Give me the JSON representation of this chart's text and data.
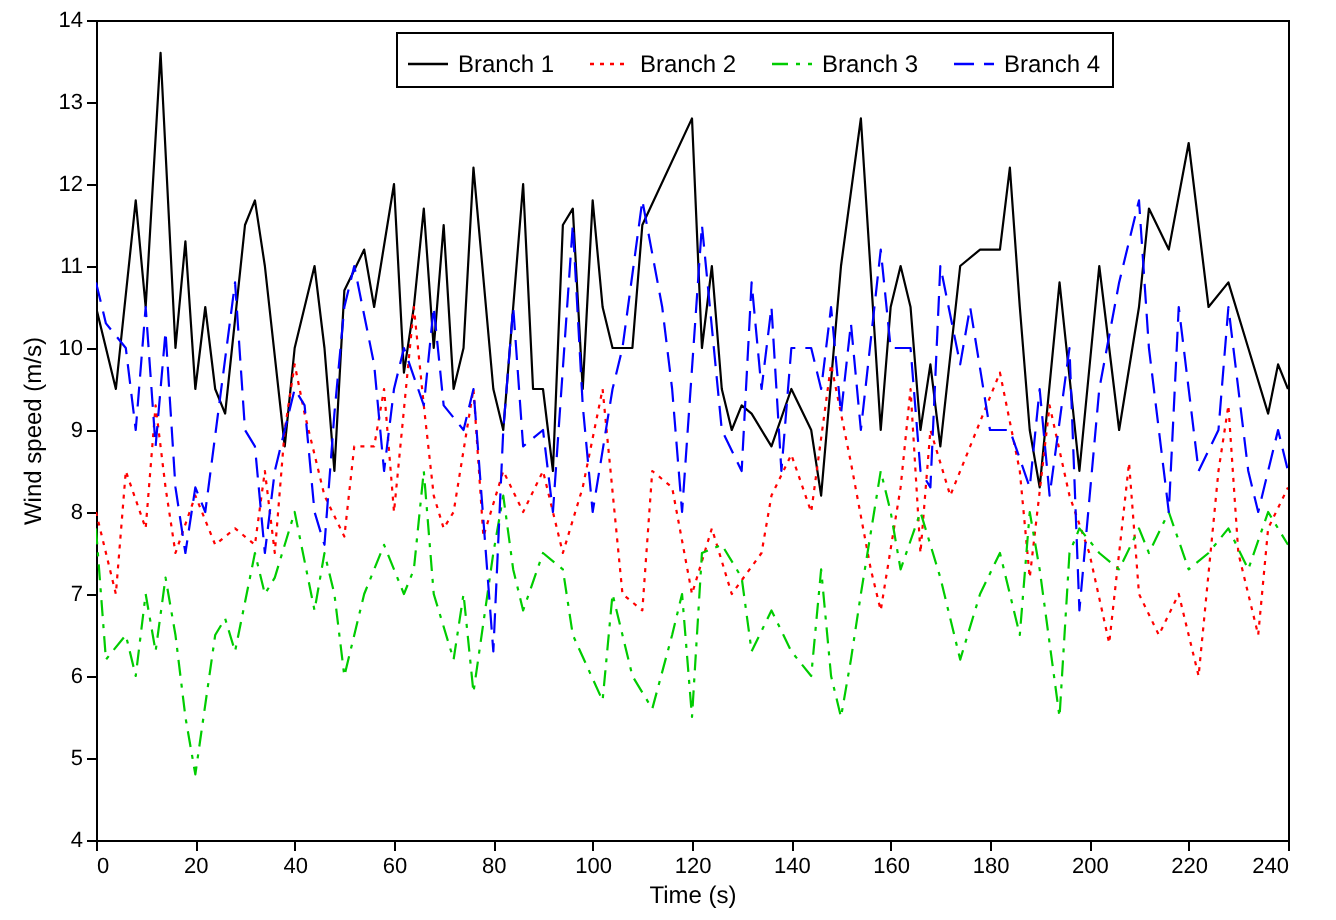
{
  "chart_data": {
    "type": "line",
    "xlabel": "Time (s)",
    "ylabel": "Wind speed (m/s)",
    "xlim": [
      0,
      240
    ],
    "ylim": [
      4,
      14
    ],
    "xticks": [
      0,
      20,
      40,
      60,
      80,
      100,
      120,
      140,
      160,
      180,
      200,
      220,
      240
    ],
    "yticks": [
      4,
      5,
      6,
      7,
      8,
      9,
      10,
      11,
      12,
      13,
      14
    ],
    "legend": "top",
    "grid": false,
    "series": [
      {
        "name": "Branch 1",
        "color": "#000000",
        "line_style": "solid",
        "x": [
          0,
          4,
          8,
          10,
          13,
          16,
          18,
          20,
          22,
          24,
          26,
          30,
          32,
          34,
          38,
          40,
          44,
          46,
          48,
          50,
          54,
          56,
          60,
          62,
          64,
          66,
          68,
          70,
          72,
          74,
          76,
          80,
          82,
          86,
          88,
          90,
          92,
          94,
          96,
          98,
          100,
          102,
          104,
          108,
          110,
          120,
          122,
          124,
          126,
          128,
          130,
          132,
          136,
          140,
          144,
          146,
          150,
          154,
          158,
          160,
          162,
          164,
          166,
          168,
          170,
          174,
          178,
          182,
          184,
          186,
          188,
          190,
          194,
          198,
          202,
          206,
          210,
          212,
          216,
          220,
          224,
          228,
          232,
          236,
          238,
          240
        ],
        "values": [
          10.5,
          9.5,
          11.8,
          10.5,
          13.6,
          10,
          11.3,
          9.5,
          10.5,
          9.5,
          9.2,
          11.5,
          11.8,
          11,
          8.8,
          10,
          11,
          10,
          8.5,
          10.7,
          11.2,
          10.5,
          12,
          9.7,
          10.5,
          11.7,
          10,
          11.5,
          9.5,
          10,
          12.2,
          9.5,
          9,
          12,
          9.5,
          9.5,
          8.5,
          11.5,
          11.7,
          9.5,
          11.8,
          10.5,
          10,
          10,
          11.5,
          12.8,
          10,
          11,
          9.5,
          9,
          9.3,
          9.2,
          8.8,
          9.5,
          9,
          8.2,
          11,
          12.8,
          9,
          10.5,
          11,
          10.5,
          9,
          9.8,
          8.8,
          11,
          11.2,
          11.2,
          12.2,
          10.5,
          9,
          8.3,
          10.8,
          8.5,
          11,
          9,
          10.5,
          11.7,
          11.2,
          12.5,
          10.5,
          10.8,
          10,
          9.2,
          9.8,
          9.5
        ]
      },
      {
        "name": "Branch 2",
        "color": "#ff0000",
        "line_style": "dotted",
        "x": [
          0,
          4,
          6,
          10,
          12,
          14,
          16,
          20,
          24,
          28,
          32,
          34,
          36,
          38,
          40,
          42,
          46,
          50,
          52,
          56,
          58,
          60,
          64,
          66,
          68,
          70,
          72,
          76,
          78,
          82,
          86,
          90,
          94,
          98,
          102,
          106,
          110,
          112,
          116,
          120,
          124,
          128,
          134,
          136,
          140,
          144,
          148,
          152,
          156,
          158,
          162,
          164,
          166,
          168,
          172,
          176,
          182,
          186,
          188,
          192,
          196,
          200,
          204,
          208,
          210,
          214,
          218,
          222,
          226,
          228,
          230,
          234,
          236,
          240
        ],
        "values": [
          8,
          7,
          8.5,
          7.8,
          9.3,
          8.3,
          7.5,
          8.2,
          7.6,
          7.8,
          7.6,
          8.5,
          7.5,
          9,
          9.8,
          9.2,
          8.2,
          7.7,
          8.8,
          8.8,
          9.5,
          8,
          10.5,
          9.3,
          8.2,
          7.8,
          8,
          9.5,
          7.7,
          8.5,
          8,
          8.5,
          7.5,
          8.3,
          9.5,
          7,
          6.8,
          8.5,
          8.3,
          7,
          7.8,
          7,
          7.5,
          8.2,
          8.7,
          8,
          9.8,
          8.6,
          7.3,
          6.8,
          8.3,
          9.5,
          7.5,
          9,
          8.2,
          8.8,
          9.7,
          8.5,
          7.2,
          9.3,
          8.2,
          7.5,
          6.4,
          8.6,
          7,
          6.5,
          7,
          6,
          8.5,
          9.3,
          7.5,
          6.5,
          7.8,
          8.3
        ]
      },
      {
        "name": "Branch 3",
        "color": "#00cc00",
        "line_style": "dashdot",
        "x": [
          0,
          2,
          6,
          8,
          10,
          12,
          14,
          16,
          18,
          20,
          24,
          26,
          28,
          32,
          34,
          36,
          40,
          44,
          46,
          48,
          50,
          54,
          56,
          58,
          62,
          64,
          66,
          68,
          72,
          74,
          76,
          80,
          82,
          84,
          86,
          90,
          94,
          96,
          102,
          104,
          108,
          112,
          116,
          118,
          120,
          122,
          126,
          130,
          132,
          136,
          140,
          144,
          146,
          148,
          150,
          152,
          154,
          158,
          160,
          162,
          166,
          170,
          174,
          178,
          182,
          186,
          188,
          190,
          194,
          196,
          198,
          202,
          206,
          210,
          212,
          216,
          220,
          224,
          228,
          232,
          236,
          240
        ],
        "values": [
          7.8,
          6.2,
          6.5,
          6,
          7,
          6.3,
          7.2,
          6.5,
          5.5,
          4.8,
          6.5,
          6.7,
          6.3,
          7.5,
          7,
          7.2,
          8,
          6.8,
          7.5,
          7,
          6,
          7,
          7.3,
          7.6,
          7,
          7.3,
          8.5,
          7,
          6.2,
          7,
          5.8,
          7.5,
          8.2,
          7.3,
          6.8,
          7.5,
          7.3,
          6.5,
          5.7,
          7,
          6,
          5.6,
          6.5,
          7,
          5.5,
          7.5,
          7.6,
          7.2,
          6.3,
          6.8,
          6.3,
          6,
          7.3,
          6,
          5.5,
          6.2,
          7,
          8.5,
          8,
          7.3,
          8,
          7.2,
          6.2,
          7,
          7.5,
          6.5,
          8,
          7.3,
          5.5,
          7.5,
          7.8,
          7.5,
          7.3,
          7.8,
          7.5,
          8,
          7.3,
          7.5,
          7.8,
          7.3,
          8,
          7.6
        ]
      },
      {
        "name": "Branch 4",
        "color": "#0000ff",
        "line_style": "dashed",
        "x": [
          0,
          2,
          6,
          8,
          10,
          12,
          14,
          16,
          18,
          20,
          22,
          28,
          30,
          32,
          34,
          36,
          40,
          42,
          44,
          46,
          48,
          50,
          52,
          56,
          58,
          60,
          62,
          66,
          68,
          70,
          74,
          76,
          80,
          82,
          84,
          86,
          90,
          92,
          96,
          98,
          100,
          104,
          106,
          110,
          114,
          116,
          118,
          122,
          126,
          130,
          132,
          134,
          136,
          138,
          140,
          144,
          146,
          148,
          150,
          152,
          154,
          158,
          160,
          164,
          166,
          168,
          170,
          174,
          176,
          180,
          184,
          188,
          190,
          192,
          196,
          198,
          202,
          206,
          210,
          212,
          214,
          216,
          218,
          222,
          226,
          228,
          232,
          234,
          238,
          240
        ],
        "values": [
          10.8,
          10.3,
          10,
          9,
          10.5,
          8.8,
          10.2,
          8.3,
          7.5,
          8.3,
          8,
          10.8,
          9,
          8.8,
          7.5,
          8.5,
          9.5,
          9.3,
          8,
          7.6,
          9.2,
          10.5,
          11,
          9.8,
          8.5,
          9.5,
          10,
          9.3,
          10.5,
          9.3,
          9,
          9.5,
          6.3,
          9,
          10.5,
          8.8,
          9,
          8,
          11.5,
          9.3,
          8,
          9.5,
          10,
          11.8,
          10.5,
          9.5,
          8,
          11.5,
          9,
          8.5,
          10.8,
          9.5,
          10.5,
          8.5,
          10,
          10,
          9.5,
          10.5,
          9.2,
          10.3,
          9,
          11.2,
          10,
          10,
          8.5,
          8.3,
          11,
          9.8,
          10.5,
          9,
          9,
          8.3,
          9.5,
          8.2,
          10,
          6.8,
          9.5,
          10.8,
          11.8,
          10,
          9,
          8,
          10.5,
          8.5,
          9,
          10.5,
          8.5,
          8,
          9,
          8.5
        ]
      }
    ]
  }
}
